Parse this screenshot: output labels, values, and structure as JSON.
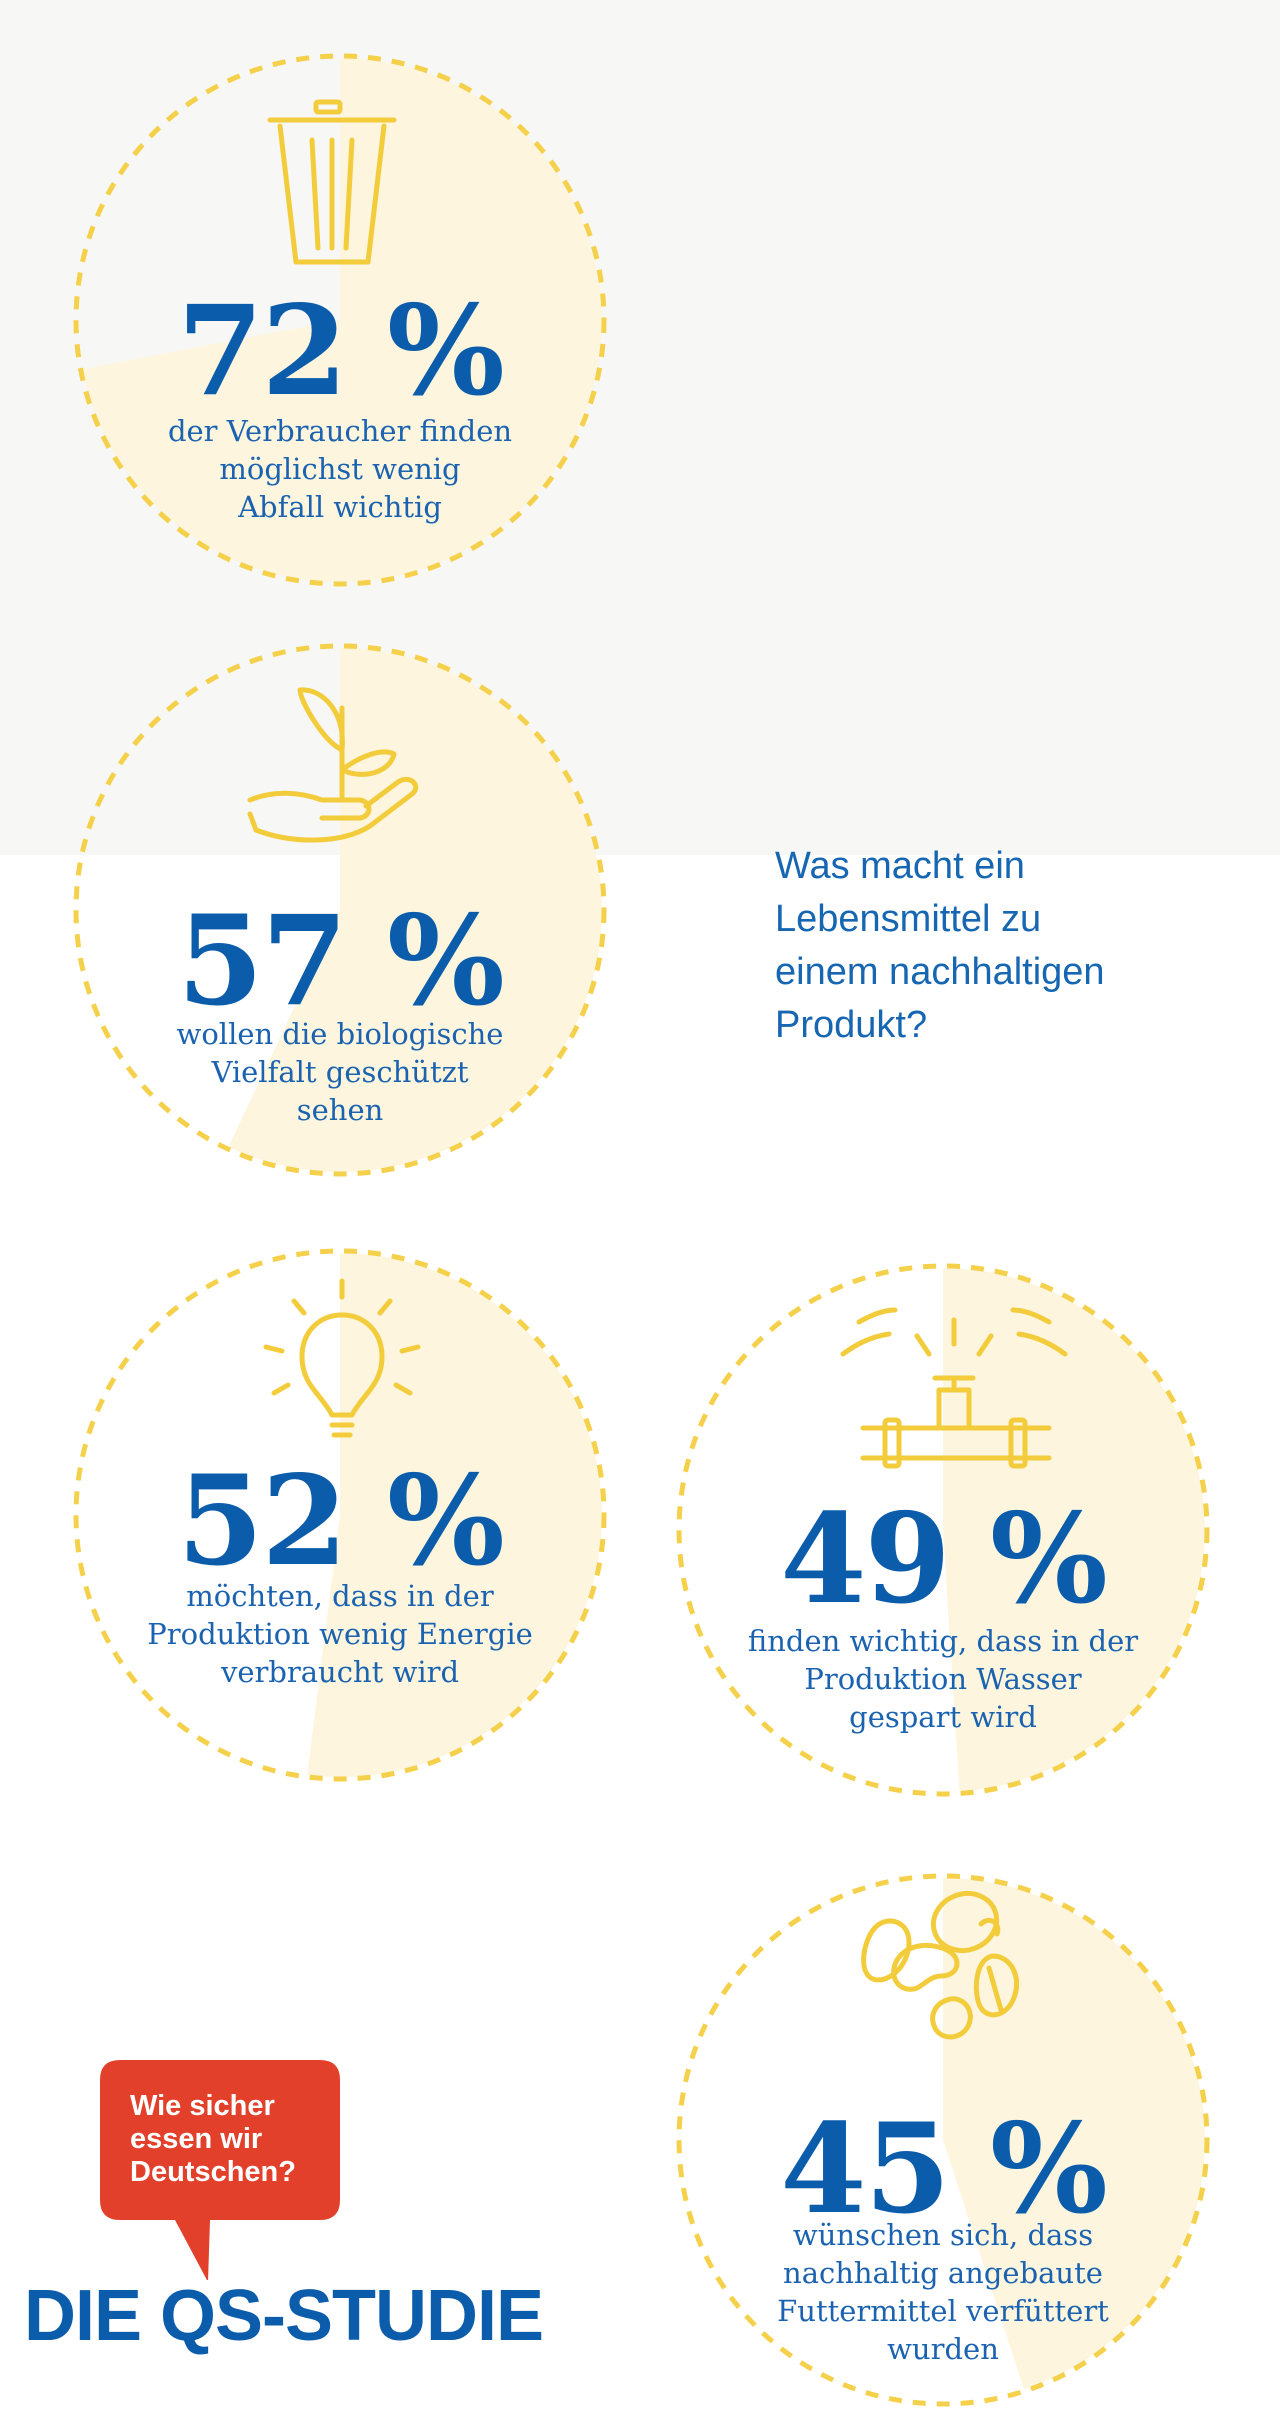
{
  "colors": {
    "ring": "#f5d04a",
    "fill": "#fdf5dd",
    "icon": "#f3cc3c",
    "primary": "#0b5cab",
    "bubble": "#e2402b",
    "background_top": "#f7f7f5"
  },
  "chart_data": {
    "type": "pie",
    "title": "Was macht ein Lebensmittel zu einem nachhaltigen Produkt?",
    "series": [
      {
        "value": 72,
        "label": "72 %",
        "description": "der Verbraucher finden\nmöglichst wenig\nAbfall wichtig",
        "icon": "trash-can-icon"
      },
      {
        "value": 57,
        "label": "57 %",
        "description": "wollen die biologische\nVielfalt geschützt\nsehen",
        "icon": "seedling-hand-icon"
      },
      {
        "value": 52,
        "label": "52 %",
        "description": "möchten, dass in der\nProduktion wenig Energie\nverbraucht wird",
        "icon": "light-bulb-icon"
      },
      {
        "value": 49,
        "label": "49 %",
        "description": "finden wichtig, dass in der\nProduktion Wasser\ngespart wird",
        "icon": "water-tap-icon"
      },
      {
        "value": 45,
        "label": "45 %",
        "description": "wünschen sich, dass\nnachhaltig angebaute\nFuttermittel verfüttert\nwurden",
        "icon": "feed-grains-icon"
      }
    ]
  },
  "question": "Was macht ein\nLebensmittel zu\neinem nachhaltigen\nProdukt?",
  "branding": {
    "bubble_text": "Wie sicher\nessen wir\nDeutschen?",
    "logo_text": "DIE QS-STUDIE"
  }
}
